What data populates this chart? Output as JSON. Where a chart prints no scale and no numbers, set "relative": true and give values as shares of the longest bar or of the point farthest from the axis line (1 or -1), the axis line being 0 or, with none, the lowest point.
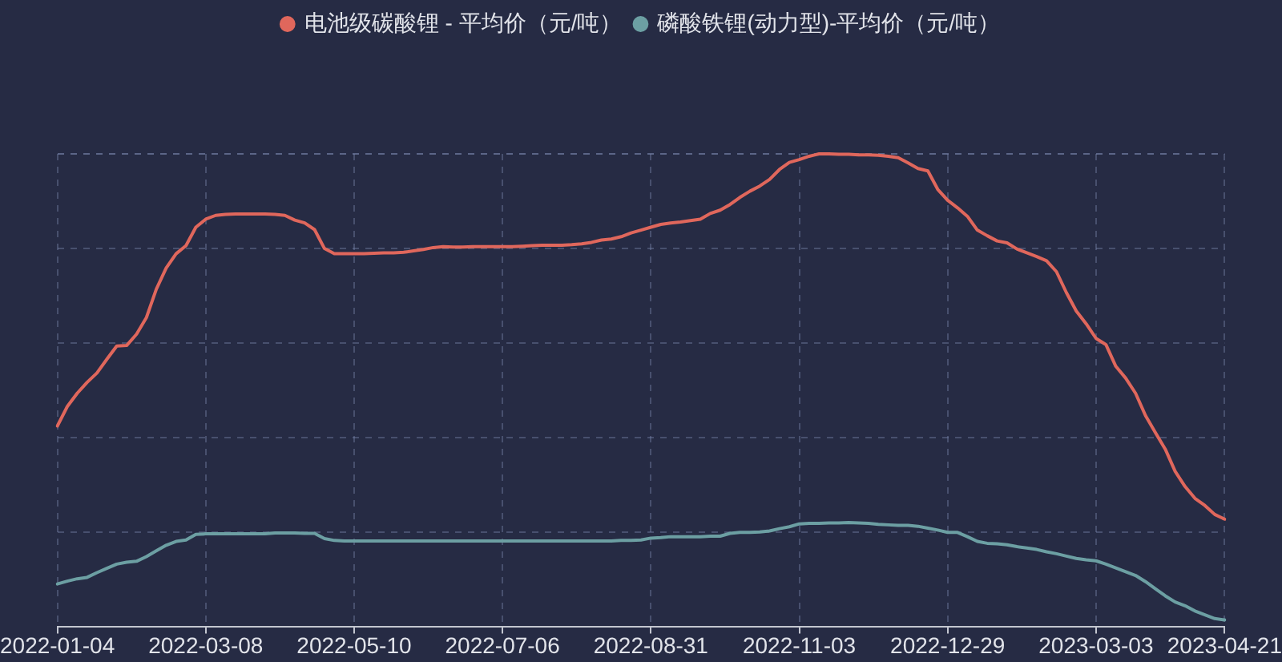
{
  "chart_data": {
    "type": "line",
    "relative": true,
    "legend": "top",
    "grid": true,
    "categories": [
      "2022-01-04",
      null,
      null,
      null,
      null,
      null,
      null,
      null,
      null,
      null,
      null,
      null,
      null,
      null,
      null,
      "2022-03-08",
      null,
      null,
      null,
      null,
      null,
      null,
      null,
      null,
      null,
      null,
      null,
      null,
      null,
      null,
      "2022-05-10",
      null,
      null,
      null,
      null,
      null,
      null,
      null,
      null,
      null,
      null,
      null,
      null,
      null,
      null,
      "2022-07-06",
      null,
      null,
      null,
      null,
      null,
      null,
      null,
      null,
      null,
      null,
      null,
      null,
      null,
      null,
      "2022-08-31",
      null,
      null,
      null,
      null,
      null,
      null,
      null,
      null,
      null,
      null,
      null,
      null,
      null,
      null,
      "2022-11-03",
      null,
      null,
      null,
      null,
      null,
      null,
      null,
      null,
      null,
      null,
      null,
      null,
      null,
      null,
      "2022-12-29",
      null,
      null,
      null,
      null,
      null,
      null,
      null,
      null,
      null,
      null,
      null,
      null,
      null,
      null,
      "2023-03-03",
      null,
      null,
      null,
      null,
      null,
      null,
      null,
      null,
      null,
      null,
      null,
      null,
      "2023-04-21"
    ],
    "series": [
      {
        "name": "电池级碳酸锂 - 平均价（元/吨）",
        "color": "#e0675c",
        "values": [
          0.425,
          0.466,
          0.494,
          0.517,
          0.537,
          0.566,
          0.594,
          0.595,
          0.619,
          0.654,
          0.714,
          0.759,
          0.789,
          0.806,
          0.845,
          0.862,
          0.87,
          0.872,
          0.873,
          0.873,
          0.873,
          0.873,
          0.872,
          0.87,
          0.86,
          0.854,
          0.84,
          0.8,
          0.789,
          0.789,
          0.789,
          0.789,
          0.79,
          0.791,
          0.791,
          0.792,
          0.795,
          0.798,
          0.802,
          0.804,
          0.803,
          0.803,
          0.804,
          0.804,
          0.804,
          0.804,
          0.804,
          0.805,
          0.806,
          0.807,
          0.807,
          0.807,
          0.808,
          0.81,
          0.813,
          0.818,
          0.82,
          0.825,
          0.833,
          0.839,
          0.845,
          0.851,
          0.854,
          0.856,
          0.859,
          0.862,
          0.874,
          0.881,
          0.893,
          0.908,
          0.921,
          0.932,
          0.946,
          0.967,
          0.982,
          0.988,
          0.995,
          1,
          1,
          0.999,
          0.999,
          0.998,
          0.998,
          0.997,
          0.995,
          0.992,
          0.981,
          0.969,
          0.964,
          0.925,
          0.902,
          0.886,
          0.868,
          0.839,
          0.827,
          0.816,
          0.812,
          0.799,
          0.791,
          0.783,
          0.774,
          0.751,
          0.707,
          0.668,
          0.641,
          0.61,
          0.597,
          0.551,
          0.526,
          0.494,
          0.447,
          0.411,
          0.376,
          0.329,
          0.297,
          0.272,
          0.257,
          0.238,
          0.228
        ]
      },
      {
        "name": "磷酸铁锂(动力型)-平均价（元/吨）",
        "color": "#6c9fa3",
        "values": [
          0.091,
          0.097,
          0.102,
          0.105,
          0.115,
          0.124,
          0.133,
          0.137,
          0.139,
          0.149,
          0.161,
          0.173,
          0.181,
          0.184,
          0.196,
          0.197,
          0.197,
          0.197,
          0.197,
          0.197,
          0.197,
          0.197,
          0.199,
          0.199,
          0.199,
          0.198,
          0.198,
          0.187,
          0.183,
          0.182,
          0.182,
          0.182,
          0.182,
          0.182,
          0.182,
          0.182,
          0.182,
          0.182,
          0.182,
          0.182,
          0.182,
          0.182,
          0.182,
          0.182,
          0.182,
          0.182,
          0.182,
          0.182,
          0.182,
          0.182,
          0.182,
          0.182,
          0.182,
          0.182,
          0.182,
          0.182,
          0.182,
          0.183,
          0.183,
          0.184,
          0.188,
          0.189,
          0.191,
          0.191,
          0.191,
          0.191,
          0.192,
          0.192,
          0.198,
          0.2,
          0.2,
          0.201,
          0.203,
          0.208,
          0.212,
          0.218,
          0.219,
          0.219,
          0.22,
          0.22,
          0.221,
          0.22,
          0.219,
          0.217,
          0.216,
          0.215,
          0.215,
          0.213,
          0.209,
          0.205,
          0.2,
          0.2,
          0.191,
          0.181,
          0.177,
          0.176,
          0.174,
          0.17,
          0.167,
          0.164,
          0.159,
          0.155,
          0.15,
          0.145,
          0.142,
          0.14,
          0.133,
          0.125,
          0.117,
          0.109,
          0.096,
          0.081,
          0.066,
          0.053,
          0.045,
          0.034,
          0.026,
          0.018,
          0.015
        ]
      }
    ]
  }
}
